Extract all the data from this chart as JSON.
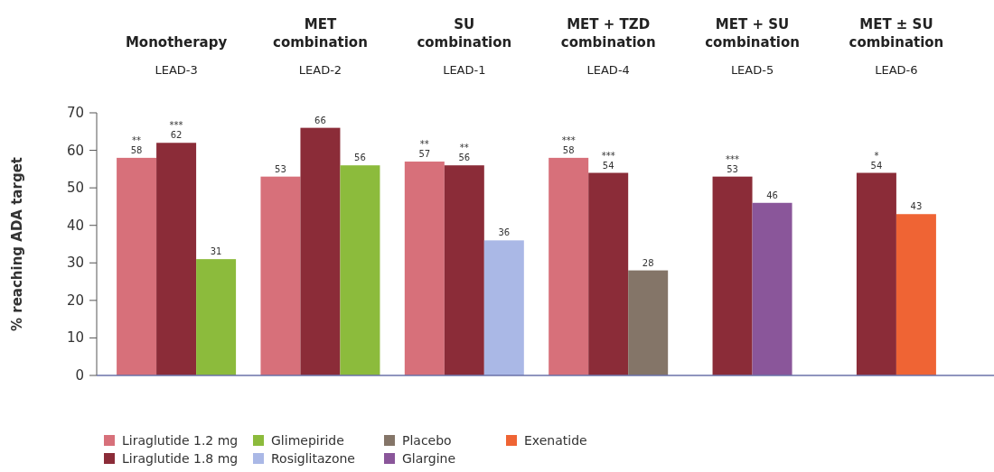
{
  "chart_data": {
    "type": "bar",
    "ylabel": "% reaching ADA target",
    "categories": [
      "Monotherapy\nLEAD-3",
      "MET\ncombination\nLEAD-2",
      "SU\ncombination\nLEAD-1",
      "MET + TZD\ncombination\nLEAD-4",
      "MET + SU\ncombination\nLEAD-5",
      "MET ± SU\ncombination\nLEAD-6"
    ],
    "series": [
      {
        "name": "Liraglutide 1.2 mg",
        "color": "#d7707a",
        "values": [
          58,
          53,
          57,
          58,
          null,
          null
        ],
        "value_labels": [
          "**\n58",
          "53",
          "**\n57",
          "***\n58",
          null,
          null
        ]
      },
      {
        "name": "Liraglutide 1.8 mg",
        "color": "#8b2c38",
        "values": [
          62,
          66,
          56,
          54,
          53,
          54
        ],
        "value_labels": [
          "***\n62",
          "66",
          "**\n56",
          "***\n54",
          "***\n53",
          "*\n54"
        ]
      },
      {
        "name": "Glimepiride",
        "color": "#8cbb3c",
        "values": [
          31,
          56,
          null,
          null,
          null,
          null
        ],
        "value_labels": [
          "31",
          "56",
          null,
          null,
          null,
          null
        ]
      },
      {
        "name": "Rosiglitazone",
        "color": "#aab8e6",
        "values": [
          null,
          null,
          36,
          null,
          null,
          null
        ],
        "value_labels": [
          null,
          null,
          "36",
          null,
          null,
          null
        ]
      },
      {
        "name": "Placebo",
        "color": "#847568",
        "values": [
          null,
          null,
          null,
          28,
          null,
          null
        ],
        "value_labels": [
          null,
          null,
          null,
          "28",
          null,
          null
        ]
      },
      {
        "name": "Glargine",
        "color": "#8a569a",
        "values": [
          null,
          null,
          null,
          null,
          46,
          null
        ],
        "value_labels": [
          null,
          null,
          null,
          null,
          "46",
          null
        ]
      },
      {
        "name": "Exenatide",
        "color": "#ef6434",
        "values": [
          null,
          null,
          null,
          null,
          null,
          43
        ],
        "value_labels": [
          null,
          null,
          null,
          null,
          null,
          "43"
        ]
      }
    ],
    "ylim": [
      0,
      70
    ],
    "yticks": [
      0,
      10,
      20,
      30,
      40,
      50,
      60,
      70
    ],
    "grid": false,
    "legend": "bottom left"
  }
}
